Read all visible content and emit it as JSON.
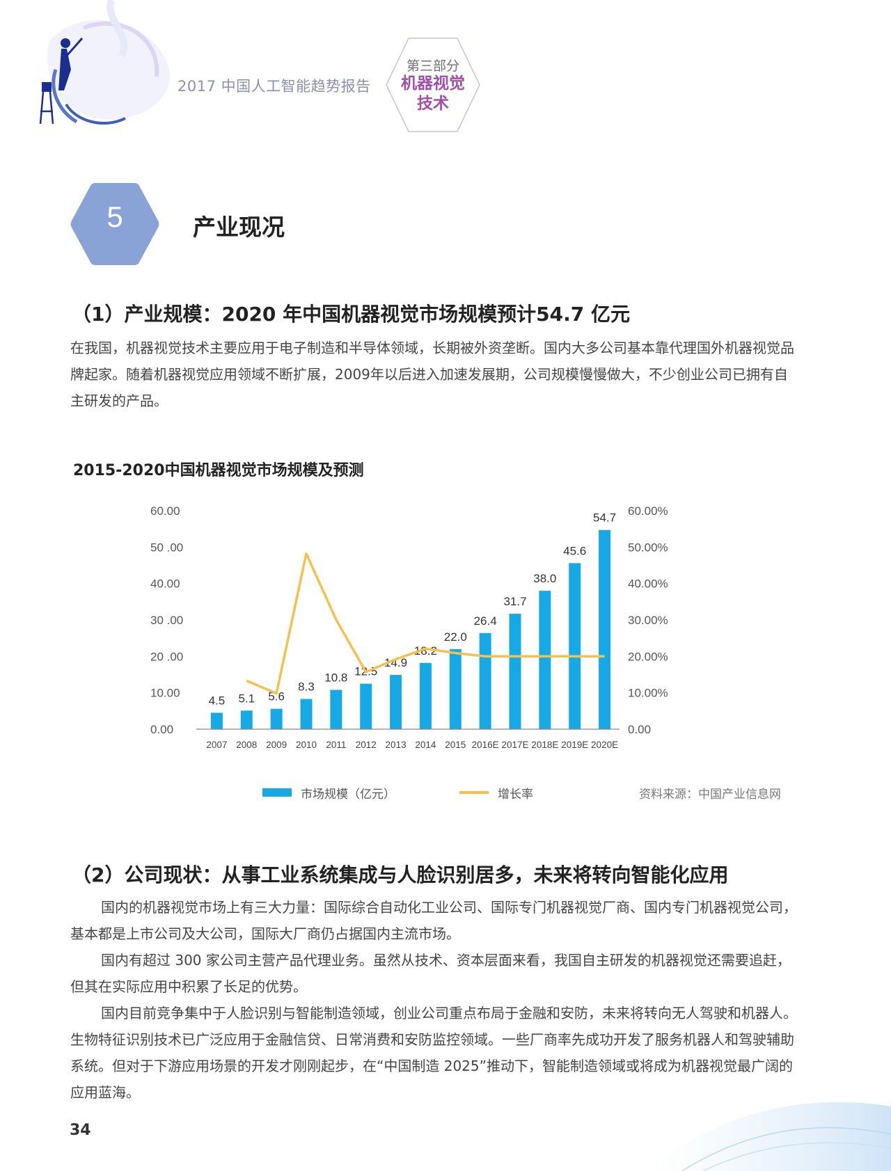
{
  "header": {
    "report_title": "2017 中国人工智能趋势报告",
    "part_label": "第三部分",
    "part_name_line1": "机器视觉",
    "part_name_line2": "技术"
  },
  "section": {
    "number": "5",
    "title": "产业现况"
  },
  "subsection1": {
    "heading": "（1）产业规模：2020 年中国机器视觉市场规模预计54.7 亿元",
    "paragraph": "在我国，机器视觉技术主要应用于电子制造和半导体领域，长期被外资垄断。国内大多公司基本靠代理国外机器视觉品牌起家。随着机器视觉应用领域不断扩展，2009年以后进入加速发展期，公司规模慢慢做大，不少创业公司已拥有自主研发的产品。"
  },
  "chart_data": {
    "type": "bar",
    "title": "2015-2020中国机器视觉市场规模及预测",
    "categories": [
      "2007",
      "2008",
      "2009",
      "2010",
      "2011",
      "2012",
      "2013",
      "2014",
      "2015",
      "2016E",
      "2017E",
      "2018E",
      "2019E",
      "2020E"
    ],
    "series": [
      {
        "name": "市场规模（亿元）",
        "type": "bar",
        "axis": "left",
        "color": "#16a9e6",
        "values": [
          4.5,
          5.1,
          5.6,
          8.3,
          10.8,
          12.5,
          14.9,
          18.2,
          22.0,
          26.4,
          31.7,
          38.0,
          45.6,
          54.7
        ],
        "labels": [
          "4.5",
          "5.1",
          "5.6",
          "8.3",
          "10.8",
          "12.5",
          "14.9",
          "18.2",
          "22.0",
          "26.4",
          "31.7",
          "38.0",
          "45.6",
          "54.7"
        ]
      },
      {
        "name": "增长率",
        "type": "line",
        "axis": "right",
        "color": "#f2c14e",
        "values": [
          null,
          13.3,
          9.8,
          48.2,
          30.1,
          15.7,
          19.2,
          22.1,
          20.9,
          20.0,
          20.0,
          20.0,
          20.0,
          20.0
        ]
      }
    ],
    "y_left": {
      "range": [
        0,
        60
      ],
      "ticks": [
        "0.00",
        "10.00",
        "20 .00",
        "30 .00",
        "40.00",
        "50 .00",
        "60.00"
      ]
    },
    "y_right": {
      "range": [
        0,
        60
      ],
      "ticks": [
        "0.00",
        "10.00%",
        "20.00%",
        "30.00%",
        "40.00%",
        "50.00%",
        "60.00%"
      ]
    },
    "grid": false,
    "legend": "bottom",
    "source": "资料来源：中国产业信息网"
  },
  "subsection2": {
    "heading": "（2）公司现状：从事工业系统集成与人脸识别居多，未来将转向智能化应用",
    "p1": "国内的机器视觉市场上有三大力量：国际综合自动化工业公司、国际专门机器视觉厂商、国内专门机器视觉公司，基本都是上市公司及大公司，国际大厂商仍占据国内主流市场。",
    "p2": "国内有超过 300 家公司主营产品代理业务。虽然从技术、资本层面来看，我国自主研发的机器视觉还需要追赶，但其在实际应用中积累了长足的优势。",
    "p3": "国内目前竞争集中于人脸识别与智能制造领域，创业公司重点布局于金融和安防，未来将转向无人驾驶和机器人。生物特征识别技术已广泛应用于金融信贷、日常消费和安防监控领域。一些厂商率先成功开发了服务机器人和驾驶辅助系统。但对于下游应用场景的开发才刚刚起步，在“中国制造 2025”推动下，智能制造领域或将成为机器视觉最广阔的应用蓝海。"
  },
  "footer": {
    "page_number": "34"
  }
}
